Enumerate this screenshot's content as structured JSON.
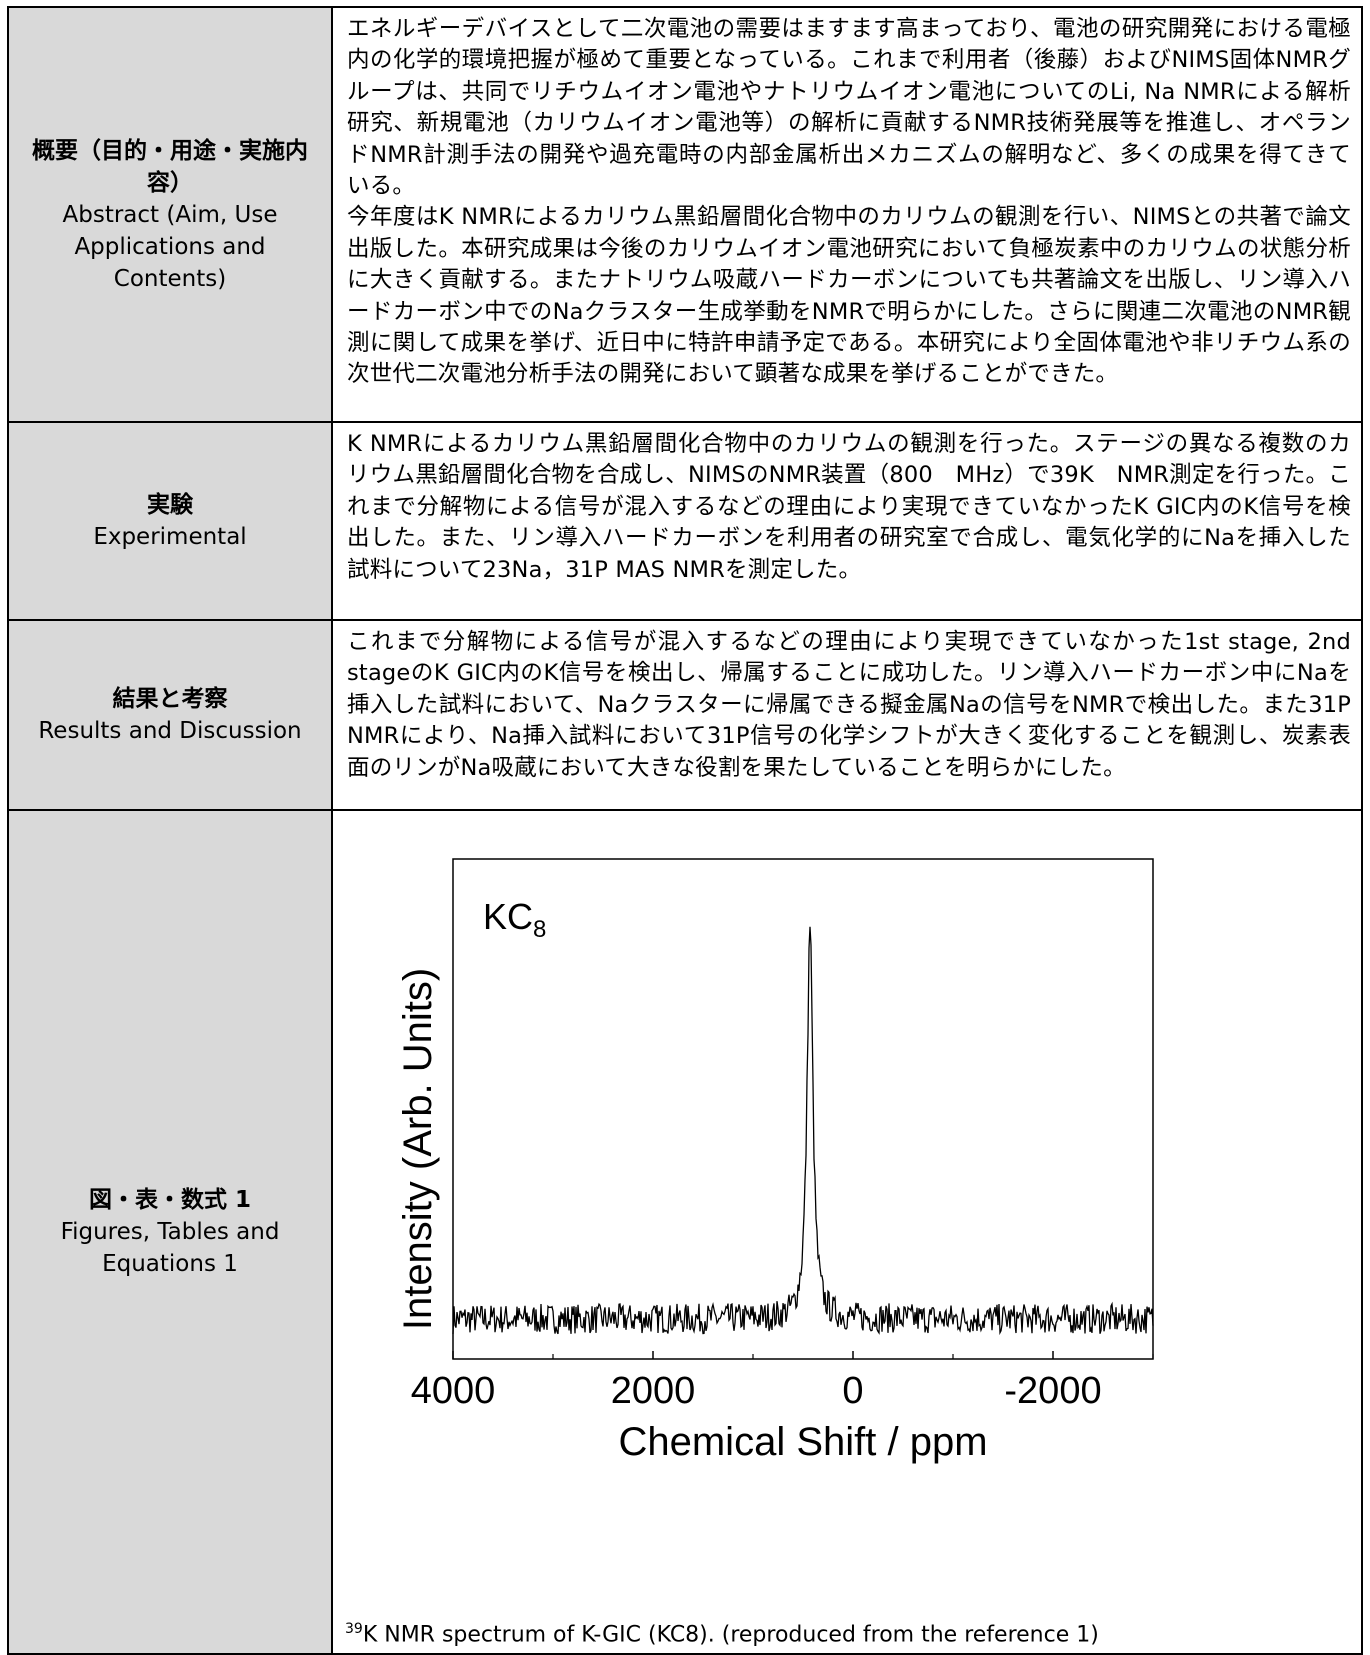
{
  "rows": [
    {
      "header_ja": "概要（目的・用途・実施内容）",
      "header_en": "Abstract (Aim, Use Applications and Contents)",
      "body": [
        "エネルギーデバイスとして二次電池の需要はますます高まっており、電池の研究開発における電極内の化学的環境把握が極めて重要となっている。これまで利用者（後藤）およびNIMS固体NMRグループは、共同でリチウムイオン電池やナトリウムイオン電池についてのLi, Na NMRによる解析研究、新規電池（カリウムイオン電池等）の解析に貢献するNMR技術発展等を推進し、オペランドNMR計測手法の開発や過充電時の内部金属析出メカニズムの解明など、多くの成果を得てきている。",
        "今年度はK NMRによるカリウム黒鉛層間化合物中のカリウムの観測を行い、NIMSとの共著で論文出版した。本研究成果は今後のカリウムイオン電池研究において負極炭素中のカリウムの状態分析に大きく貢献する。またナトリウム吸蔵ハードカーボンについても共著論文を出版し、リン導入ハードカーボン中でのNaクラスター生成挙動をNMRで明らかにした。さらに関連二次電池のNMR観測に関して成果を挙げ、近日中に特許申請予定である。本研究により全固体電池や非リチウム系の次世代二次電池分析手法の開発において顕著な成果を挙げることができた。"
      ]
    },
    {
      "header_ja": "実験",
      "header_en": "Experimental",
      "body": [
        "K NMRによるカリウム黒鉛層間化合物中のカリウムの観測を行った。ステージの異なる複数のカリウム黒鉛層間化合物を合成し、NIMSのNMR装置（800　MHz）で39K　NMR測定を行った。これまで分解物による信号が混入するなどの理由により実現できていなかったK GIC内のK信号を検出した。また、リン導入ハードカーボンを利用者の研究室で合成し、電気化学的にNaを挿入した試料について23Na，31P MAS NMRを測定した。"
      ]
    },
    {
      "header_ja": "結果と考察",
      "header_en": "Results and Discussion",
      "body": [
        "これまで分解物による信号が混入するなどの理由により実現できていなかった1st stage, 2nd stageのK GIC内のK信号を検出し、帰属することに成功した。リン導入ハードカーボン中にNaを挿入した試料において、Naクラスターに帰属できる擬金属Naの信号をNMRで検出した。また31P　NMRにより、Na挿入試料において31P信号の化学シフトが大きく変化することを観測し、炭素表面のリンがNa吸蔵において大きな役割を果たしていることを明らかにした。"
      ]
    },
    {
      "header_ja": "図・表・数式 1",
      "header_en": "Figures, Tables and Equations 1"
    }
  ],
  "figure": {
    "caption_sup": "39",
    "caption_rest": "K NMR spectrum of K-GIC (KC8). (reproduced from the reference 1)"
  },
  "chart_data": {
    "type": "line",
    "title": "",
    "annotation": "KC8",
    "xlabel": "Chemical Shift / ppm",
    "ylabel": "Intensity (Arb. Units)",
    "xlim": [
      4000,
      -3000
    ],
    "x_reversed": true,
    "xticks": [
      4000,
      2000,
      0,
      -2000
    ],
    "minor_xticks": [
      3000,
      1000,
      -1000,
      -3000
    ],
    "ylim": [
      0,
      1
    ],
    "grid": false,
    "series": [
      {
        "peak_center_ppm": 430,
        "peak_height": 0.79,
        "peak_fwhm_ppm": 70,
        "baseline": 0.08,
        "noise_amplitude": 0.03
      }
    ]
  }
}
